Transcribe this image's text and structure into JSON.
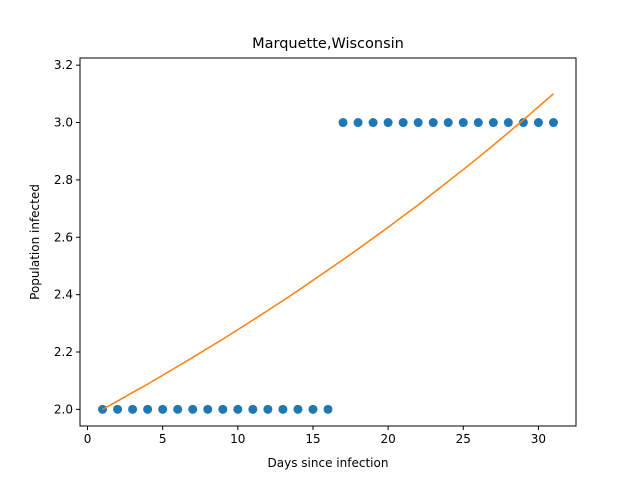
{
  "chart_data": {
    "type": "scatter",
    "title": "Marquette,Wisconsin",
    "xlabel": "Days since infection",
    "ylabel": "Population infected",
    "xlim": [
      -0.5,
      32.5
    ],
    "ylim": [
      1.942,
      3.225
    ],
    "x_ticks": [
      0,
      5,
      10,
      15,
      20,
      25,
      30
    ],
    "x_tick_labels": [
      "0",
      "5",
      "10",
      "15",
      "20",
      "25",
      "30"
    ],
    "y_ticks": [
      2.0,
      2.2,
      2.4,
      2.6,
      2.8,
      3.0,
      3.2
    ],
    "y_tick_labels": [
      "2.0",
      "2.2",
      "2.4",
      "2.6",
      "2.8",
      "3.0",
      "3.2"
    ],
    "grid": false,
    "legend": "none",
    "series": [
      {
        "kind": "scatter",
        "color": "#1f77b4",
        "x": [
          1,
          2,
          3,
          4,
          5,
          6,
          7,
          8,
          9,
          10,
          11,
          12,
          13,
          14,
          15,
          16,
          17,
          18,
          19,
          20,
          21,
          22,
          23,
          24,
          25,
          26,
          27,
          28,
          29,
          30,
          31
        ],
        "y": [
          2,
          2,
          2,
          2,
          2,
          2,
          2,
          2,
          2,
          2,
          2,
          2,
          2,
          2,
          2,
          2,
          3,
          3,
          3,
          3,
          3,
          3,
          3,
          3,
          3,
          3,
          3,
          3,
          3,
          3,
          3
        ]
      },
      {
        "kind": "line",
        "color": "#ff7f0e",
        "x": [
          1,
          2,
          3,
          4,
          5,
          6,
          7,
          8,
          9,
          10,
          11,
          12,
          13,
          14,
          15,
          16,
          17,
          18,
          19,
          20,
          21,
          22,
          23,
          24,
          25,
          26,
          27,
          28,
          29,
          30,
          31
        ],
        "y": [
          2.0,
          2.029,
          2.059,
          2.088,
          2.119,
          2.15,
          2.181,
          2.213,
          2.245,
          2.278,
          2.311,
          2.345,
          2.379,
          2.414,
          2.45,
          2.486,
          2.522,
          2.559,
          2.597,
          2.635,
          2.674,
          2.713,
          2.754,
          2.795,
          2.836,
          2.878,
          2.921,
          2.965,
          3.009,
          3.055,
          3.1
        ]
      }
    ]
  }
}
